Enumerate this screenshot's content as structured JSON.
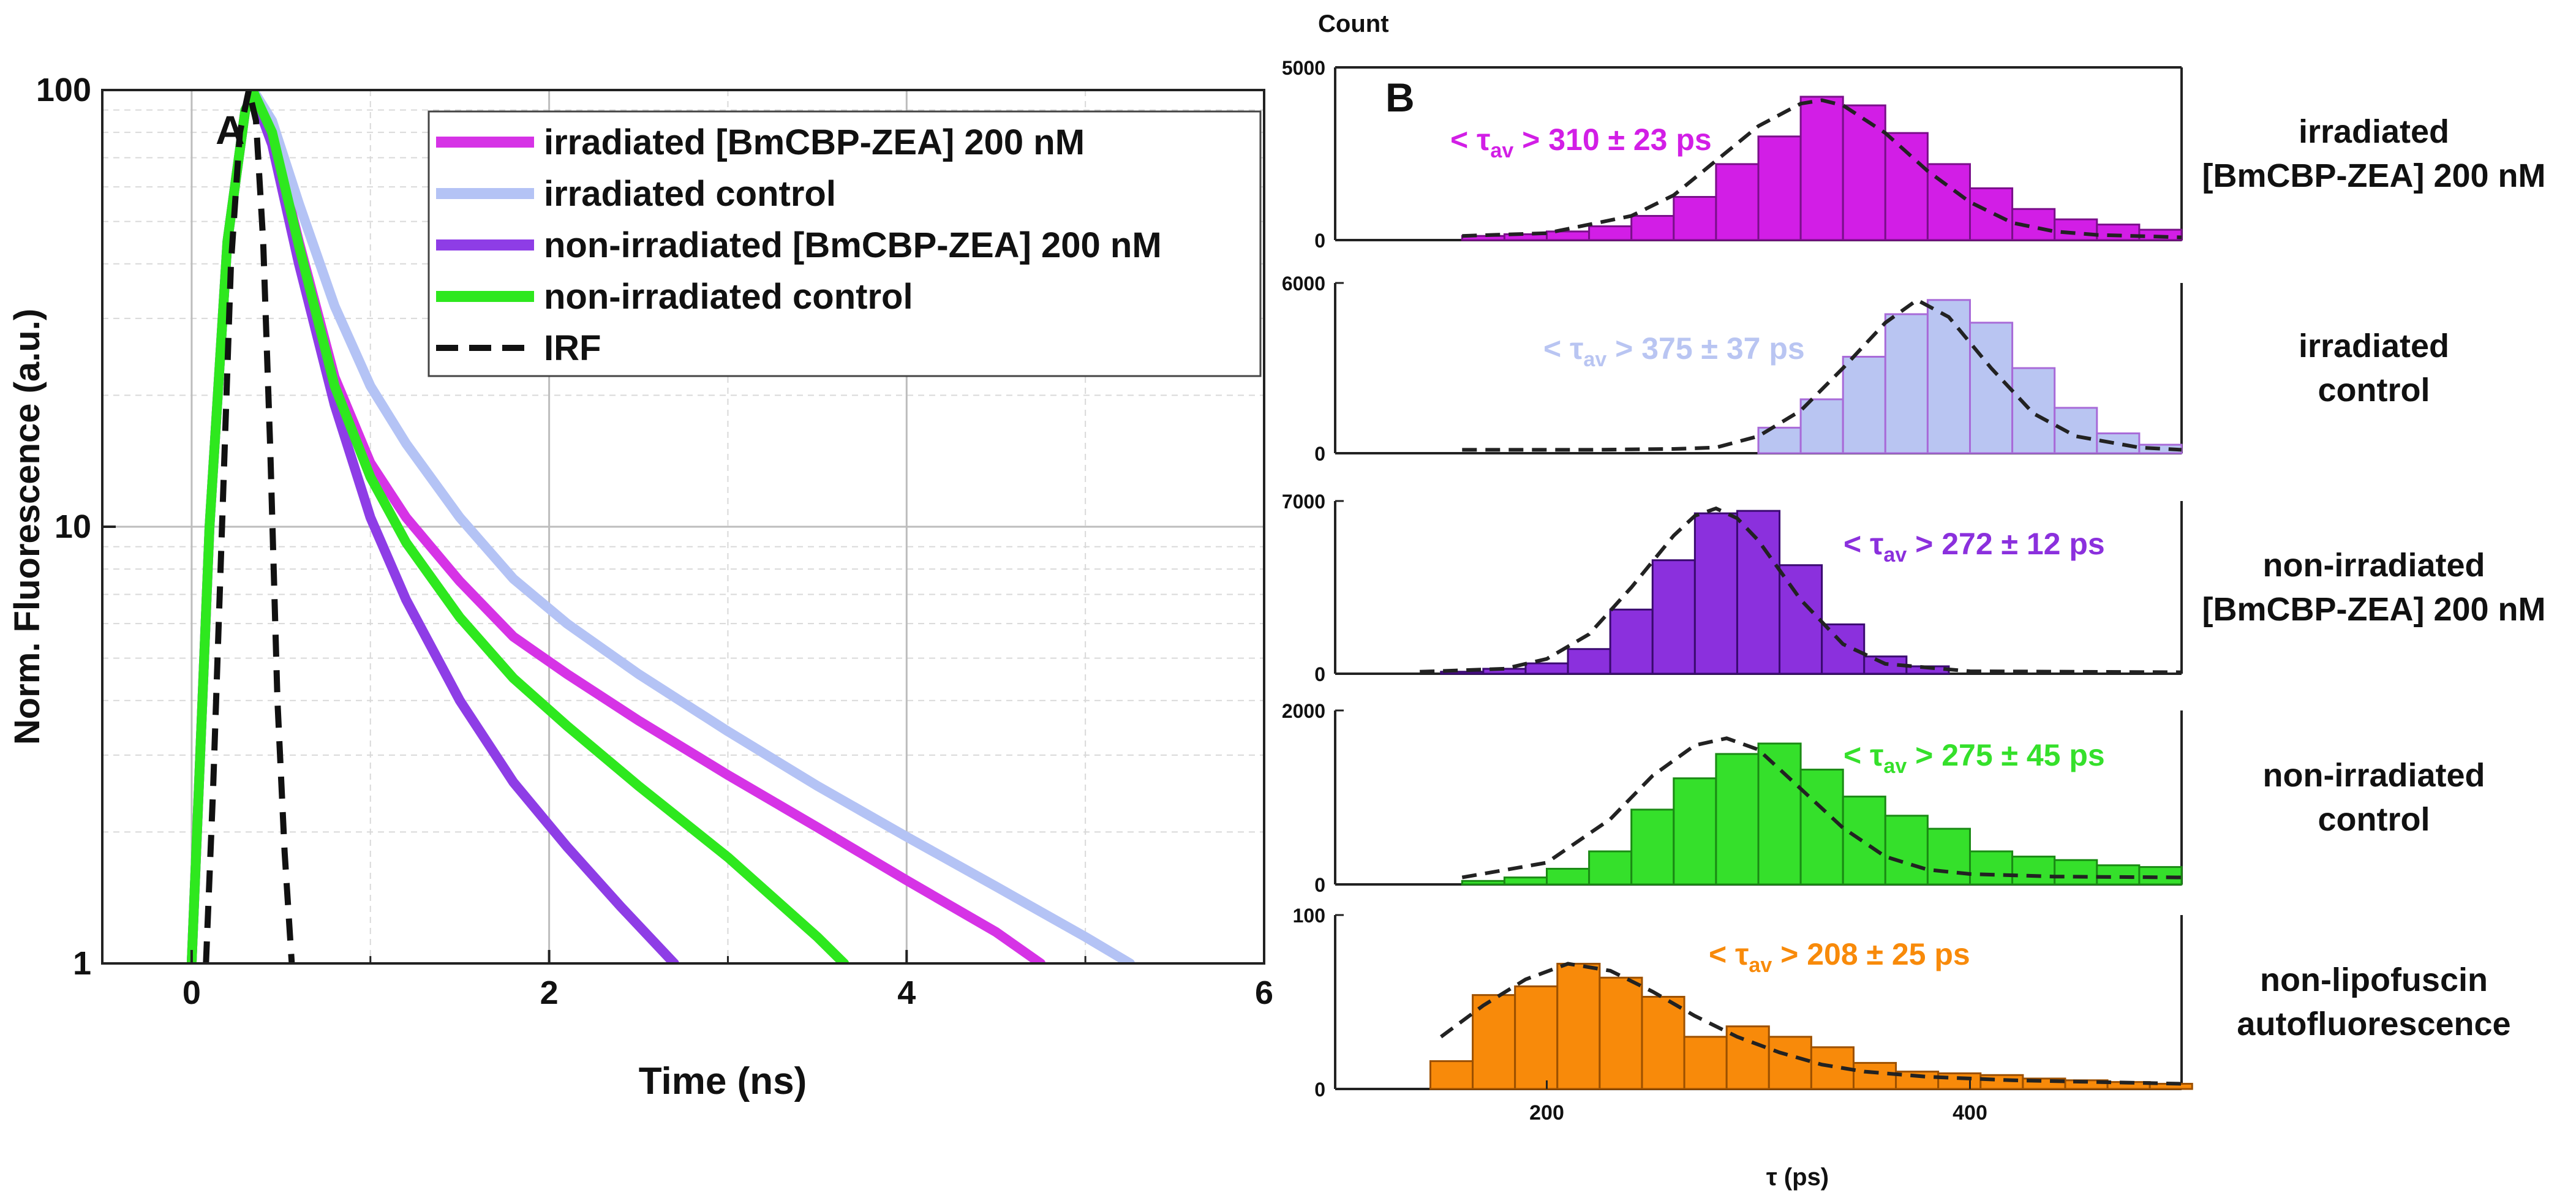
{
  "chart_data": [
    {
      "panel": "A",
      "type": "line",
      "xlabel": "Time (ns)",
      "ylabel": "Norm. Fluorescence (a.u.)",
      "yscale": "log",
      "xlim": [
        -0.5,
        6
      ],
      "ylim": [
        1,
        100
      ],
      "xticks": [
        0,
        2,
        4,
        6
      ],
      "xtick_labels": [
        "0",
        "2",
        "4",
        "6"
      ],
      "yticks": [
        1,
        10,
        100
      ],
      "ytick_labels": [
        "1",
        "10",
        "100"
      ],
      "grid": true,
      "legend_position": "top-right",
      "series": [
        {
          "name": "irradiated [BmCBP-ZEA] 200 nM",
          "color": "#d633e6",
          "dashed": false,
          "x": [
            0,
            0.1,
            0.2,
            0.3,
            0.35,
            0.45,
            0.6,
            0.8,
            1.0,
            1.2,
            1.5,
            1.8,
            2.1,
            2.5,
            3.0,
            3.5,
            4.0,
            4.5,
            4.75
          ],
          "y": [
            1,
            10,
            45,
            90,
            98,
            80,
            45,
            22,
            14,
            10.5,
            7.5,
            5.6,
            4.6,
            3.6,
            2.7,
            2.05,
            1.55,
            1.18,
            1.0
          ]
        },
        {
          "name": "irradiated control",
          "color": "#b4c3f5",
          "dashed": false,
          "x": [
            0,
            0.1,
            0.2,
            0.3,
            0.35,
            0.45,
            0.6,
            0.8,
            1.0,
            1.2,
            1.5,
            1.8,
            2.1,
            2.5,
            3.0,
            3.5,
            4.0,
            4.5,
            5.0,
            5.25
          ],
          "y": [
            1,
            10,
            45,
            90,
            99,
            85,
            55,
            32,
            21,
            15.5,
            10.5,
            7.6,
            6.0,
            4.6,
            3.4,
            2.55,
            1.95,
            1.5,
            1.15,
            1.0
          ]
        },
        {
          "name": "non-irradiated [BmCBP-ZEA] 200 nM",
          "color": "#8e3de6",
          "dashed": false,
          "x": [
            0,
            0.1,
            0.2,
            0.3,
            0.35,
            0.45,
            0.6,
            0.8,
            1.0,
            1.2,
            1.5,
            1.8,
            2.1,
            2.4,
            2.7
          ],
          "y": [
            1,
            10,
            45,
            90,
            97,
            75,
            40,
            19,
            10.5,
            6.8,
            4.0,
            2.6,
            1.85,
            1.35,
            1.0
          ]
        },
        {
          "name": "non-irradiated control",
          "color": "#2ee81e",
          "dashed": false,
          "x": [
            0,
            0.1,
            0.2,
            0.3,
            0.35,
            0.45,
            0.6,
            0.8,
            1.0,
            1.2,
            1.5,
            1.8,
            2.1,
            2.5,
            3.0,
            3.5,
            3.65
          ],
          "y": [
            1,
            10,
            45,
            90,
            98,
            80,
            44,
            21,
            13,
            9.2,
            6.2,
            4.5,
            3.5,
            2.55,
            1.75,
            1.15,
            1.0
          ]
        },
        {
          "name": "IRF",
          "color": "#111111",
          "dashed": true,
          "x": [
            0.08,
            0.12,
            0.17,
            0.22,
            0.27,
            0.32,
            0.36,
            0.4,
            0.44,
            0.48,
            0.52,
            0.56
          ],
          "y": [
            1,
            2.5,
            10,
            40,
            80,
            100,
            85,
            45,
            15,
            4,
            1.8,
            1
          ]
        }
      ]
    },
    {
      "panel": "B",
      "type": "bar",
      "ylabel": "Count",
      "xlabel": "τ (ps)",
      "xlim": [
        100,
        500
      ],
      "xticks": [
        200,
        400
      ],
      "xtick_labels": [
        "200",
        "400"
      ],
      "bin_width": 20,
      "subplots": [
        {
          "name": "irradiated [BmCBP-ZEA] 200 nM",
          "label_lines": [
            "irradiated",
            "[BmCBP-ZEA] 200 nM"
          ],
          "annotation_prefix": "< τ",
          "annotation_sub": "av",
          "annotation_value": "> 310 ± 23 ps",
          "color": "#d21ee6",
          "edge": "#7a0f8a",
          "ylim": [
            0,
            5000
          ],
          "yticks": [
            "0",
            "5000"
          ],
          "bins": [
            160,
            180,
            200,
            220,
            240,
            260,
            280,
            300,
            320,
            340,
            360,
            380,
            400,
            420,
            440,
            460,
            480
          ],
          "values": [
            120,
            170,
            250,
            400,
            700,
            1250,
            2200,
            3000,
            4150,
            3900,
            3100,
            2200,
            1500,
            900,
            600,
            450,
            300
          ],
          "fit_x": [
            160,
            200,
            240,
            260,
            280,
            300,
            320,
            330,
            340,
            360,
            380,
            400,
            420,
            440,
            460,
            500
          ],
          "fit_y": [
            120,
            200,
            700,
            1300,
            2300,
            3300,
            3950,
            4050,
            3900,
            3100,
            2000,
            1100,
            500,
            250,
            150,
            80
          ]
        },
        {
          "name": "irradiated control",
          "label_lines": [
            "irradiated",
            "control"
          ],
          "annotation_prefix": "< τ",
          "annotation_sub": "av",
          "annotation_value": "> 375 ± 37 ps",
          "color": "#b9c5f2",
          "edge": "#a86ad8",
          "ylim": [
            0,
            6000
          ],
          "yticks": [
            "0",
            "6000"
          ],
          "bins": [
            300,
            320,
            340,
            360,
            380,
            400,
            420,
            440,
            460,
            480
          ],
          "values": [
            900,
            1900,
            3400,
            4900,
            5400,
            4600,
            3000,
            1600,
            700,
            300
          ],
          "fit_x": [
            160,
            220,
            260,
            280,
            300,
            320,
            340,
            360,
            375,
            390,
            410,
            430,
            450,
            480,
            500
          ],
          "fit_y": [
            120,
            120,
            150,
            200,
            600,
            1500,
            3000,
            4600,
            5400,
            4800,
            3000,
            1400,
            600,
            200,
            120
          ]
        },
        {
          "name": "non-irradiated [BmCBP-ZEA] 200 nM",
          "label_lines": [
            "non-irradiated",
            "[BmCBP-ZEA] 200 nM"
          ],
          "annotation_prefix": "< τ",
          "annotation_sub": "av",
          "annotation_value": "> 272 ± 12 ps",
          "color": "#8b30dd",
          "edge": "#3a0a70",
          "ylim": [
            0,
            7000
          ],
          "yticks": [
            "0",
            "7000"
          ],
          "bins": [
            150,
            170,
            190,
            210,
            230,
            250,
            270,
            290,
            310,
            330,
            350,
            370
          ],
          "values": [
            80,
            200,
            420,
            1000,
            2600,
            4600,
            6500,
            6600,
            4400,
            2000,
            700,
            300
          ],
          "fit_x": [
            140,
            180,
            200,
            220,
            240,
            260,
            270,
            280,
            290,
            300,
            320,
            340,
            360,
            400,
            500
          ],
          "fit_y": [
            80,
            200,
            600,
            1600,
            3500,
            5600,
            6400,
            6700,
            6300,
            5400,
            3000,
            1200,
            400,
            100,
            60
          ]
        },
        {
          "name": "non-irradiated control",
          "label_lines": [
            "non-irradiated",
            "control"
          ],
          "annotation_prefix": "< τ",
          "annotation_sub": "av",
          "annotation_value": "> 275 ± 45 ps",
          "color": "#35e02b",
          "edge": "#1a8a14",
          "ylim": [
            0,
            2000
          ],
          "yticks": [
            "0",
            "2000"
          ],
          "bins": [
            160,
            180,
            200,
            220,
            240,
            260,
            280,
            300,
            320,
            340,
            360,
            380,
            400,
            420,
            440,
            460,
            480
          ],
          "values": [
            40,
            80,
            180,
            380,
            860,
            1220,
            1500,
            1620,
            1320,
            1010,
            790,
            640,
            380,
            320,
            280,
            220,
            200
          ],
          "fit_x": [
            160,
            200,
            230,
            250,
            270,
            285,
            300,
            320,
            340,
            360,
            380,
            400,
            440,
            500
          ],
          "fit_y": [
            80,
            250,
            750,
            1250,
            1600,
            1680,
            1550,
            1100,
            650,
            320,
            170,
            120,
            90,
            80
          ]
        },
        {
          "name": "non-lipofuscin autofluorescence",
          "label_lines": [
            "non-lipofuscin",
            "autofluorescence"
          ],
          "annotation_prefix": "< τ",
          "annotation_sub": "av",
          "annotation_value": "> 208 ± 25 ps",
          "color": "#f88a0a",
          "edge": "#9c5000",
          "ylim": [
            0,
            100
          ],
          "yticks": [
            "0",
            "100"
          ],
          "bins": [
            145,
            165,
            185,
            205,
            225,
            245,
            265,
            285,
            305,
            325,
            345,
            365,
            385,
            405,
            425,
            445,
            465,
            485
          ],
          "values": [
            16,
            54,
            59,
            72,
            64,
            53,
            30,
            36,
            30,
            24,
            15,
            10,
            9,
            8,
            6,
            5,
            4,
            3
          ],
          "fit_x": [
            150,
            170,
            190,
            210,
            230,
            250,
            270,
            290,
            310,
            330,
            350,
            380,
            420,
            460,
            500
          ],
          "fit_y": [
            30,
            48,
            63,
            72,
            68,
            56,
            42,
            30,
            21,
            14,
            10,
            7,
            5,
            4,
            3
          ]
        }
      ]
    }
  ],
  "panel_labels": {
    "a": "A",
    "b": "B"
  }
}
